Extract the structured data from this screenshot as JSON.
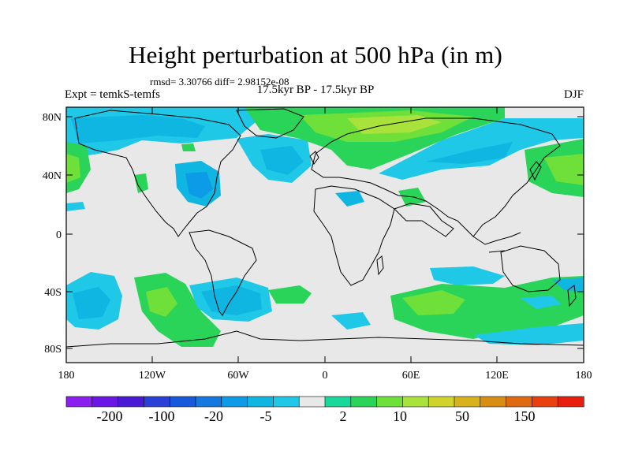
{
  "title": "Height perturbation at 500 hPa (in m)",
  "stats": "rmsd= 3.30766 diff= 2.98152e-08",
  "left_label": "Expt = temkS-temfs",
  "center_label": "17.5kyr BP - 17.5kyr BP",
  "right_label": "DJF",
  "lat_ticks": [
    "80N",
    "40N",
    "0",
    "40S",
    "80S"
  ],
  "lon_ticks": [
    "180",
    "120W",
    "60W",
    "0",
    "60E",
    "120E",
    "180"
  ],
  "colorbar": {
    "colors": [
      "#8b1ff0",
      "#6a16e6",
      "#4a19d6",
      "#2a3fd7",
      "#1659dd",
      "#1478e0",
      "#0c9be6",
      "#10b6e2",
      "#1ec8e6",
      "#e8e8e8",
      "#18d99a",
      "#2ad458",
      "#6fe03a",
      "#a8e23a",
      "#cfd32c",
      "#d8b21a",
      "#d88e12",
      "#e06a12",
      "#e8400e",
      "#e81e0e"
    ],
    "labels": [
      "-200",
      "-100",
      "-20",
      "-5",
      "2",
      "10",
      "50",
      "150"
    ]
  }
}
